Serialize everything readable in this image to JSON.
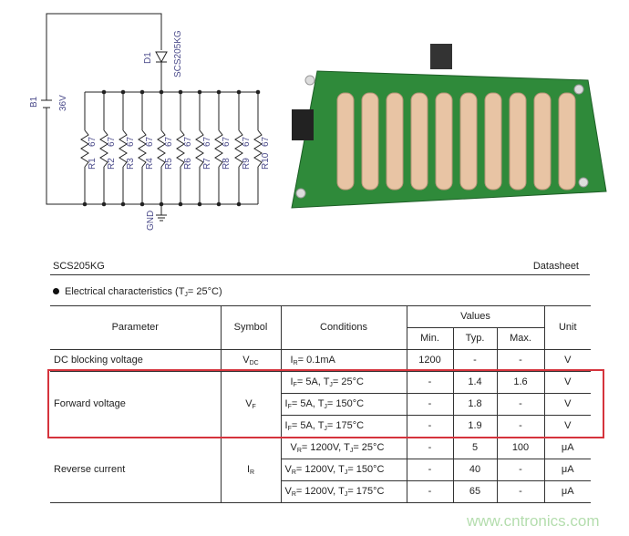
{
  "schematic": {
    "battery": {
      "ref": "B1",
      "value": "36V"
    },
    "diode": {
      "ref": "D1",
      "part": "SCS205KG"
    },
    "resistors": [
      {
        "ref": "R1",
        "value": "67"
      },
      {
        "ref": "R2",
        "value": "67"
      },
      {
        "ref": "R3",
        "value": "67"
      },
      {
        "ref": "R4",
        "value": "67"
      },
      {
        "ref": "R5",
        "value": "67"
      },
      {
        "ref": "R6",
        "value": "67"
      },
      {
        "ref": "R7",
        "value": "67"
      },
      {
        "ref": "R8",
        "value": "67"
      },
      {
        "ref": "R9",
        "value": "67"
      },
      {
        "ref": "R10",
        "value": "67"
      }
    ],
    "ground": "GND",
    "colors": {
      "wire": "#222222",
      "label": "#4a4a8a"
    }
  },
  "pcb": {
    "colors": {
      "board": "#2f8a3a",
      "resistor": "#e8c4a4"
    },
    "resistor_count": 10
  },
  "header": {
    "part": "SCS205KG",
    "doc": "Datasheet"
  },
  "section": {
    "title": [
      "Electrical characteristics (T",
      "J",
      "= 25°C)"
    ]
  },
  "table": {
    "headers": {
      "parameter": "Parameter",
      "symbol": "Symbol",
      "conditions": "Conditions",
      "values": "Values",
      "min": "Min.",
      "typ": "Typ.",
      "max": "Max.",
      "unit": "Unit"
    },
    "groups": [
      {
        "parameter": "DC blocking voltage",
        "symbol": [
          "V",
          "DC"
        ],
        "rows": [
          {
            "cond": [
              "I",
              "R",
              "= 0.1mA"
            ],
            "min": "1200",
            "typ": "-",
            "max": "-",
            "unit": "V"
          }
        ]
      },
      {
        "parameter": "Forward voltage",
        "symbol": [
          "V",
          "F"
        ],
        "highlight": true,
        "rows": [
          {
            "cond": [
              "I",
              "F",
              "= 5A, T",
              "J",
              "= 25°C"
            ],
            "min": "-",
            "typ": "1.4",
            "max": "1.6",
            "unit": "V"
          },
          {
            "cond": [
              "I",
              "F",
              "= 5A, T",
              "J",
              "= 150°C"
            ],
            "min": "-",
            "typ": "1.8",
            "max": "-",
            "unit": "V"
          },
          {
            "cond": [
              "I",
              "F",
              "= 5A, T",
              "J",
              "= 175°C"
            ],
            "min": "-",
            "typ": "1.9",
            "max": "-",
            "unit": "V"
          }
        ]
      },
      {
        "parameter": "Reverse current",
        "symbol": [
          "I",
          "R"
        ],
        "rows": [
          {
            "cond": [
              "V",
              "R",
              "= 1200V, T",
              "J",
              "= 25°C"
            ],
            "min": "-",
            "typ": "5",
            "max": "100",
            "unit": "μA"
          },
          {
            "cond": [
              "V",
              "R",
              "= 1200V, T",
              "J",
              "= 150°C"
            ],
            "min": "-",
            "typ": "40",
            "max": "-",
            "unit": "μA"
          },
          {
            "cond": [
              "V",
              "R",
              "= 1200V, T",
              "J",
              "= 175°C"
            ],
            "min": "-",
            "typ": "65",
            "max": "-",
            "unit": "μA"
          }
        ]
      }
    ],
    "highlight_color": "#d5333c"
  },
  "watermark": "www.cntronics.com"
}
